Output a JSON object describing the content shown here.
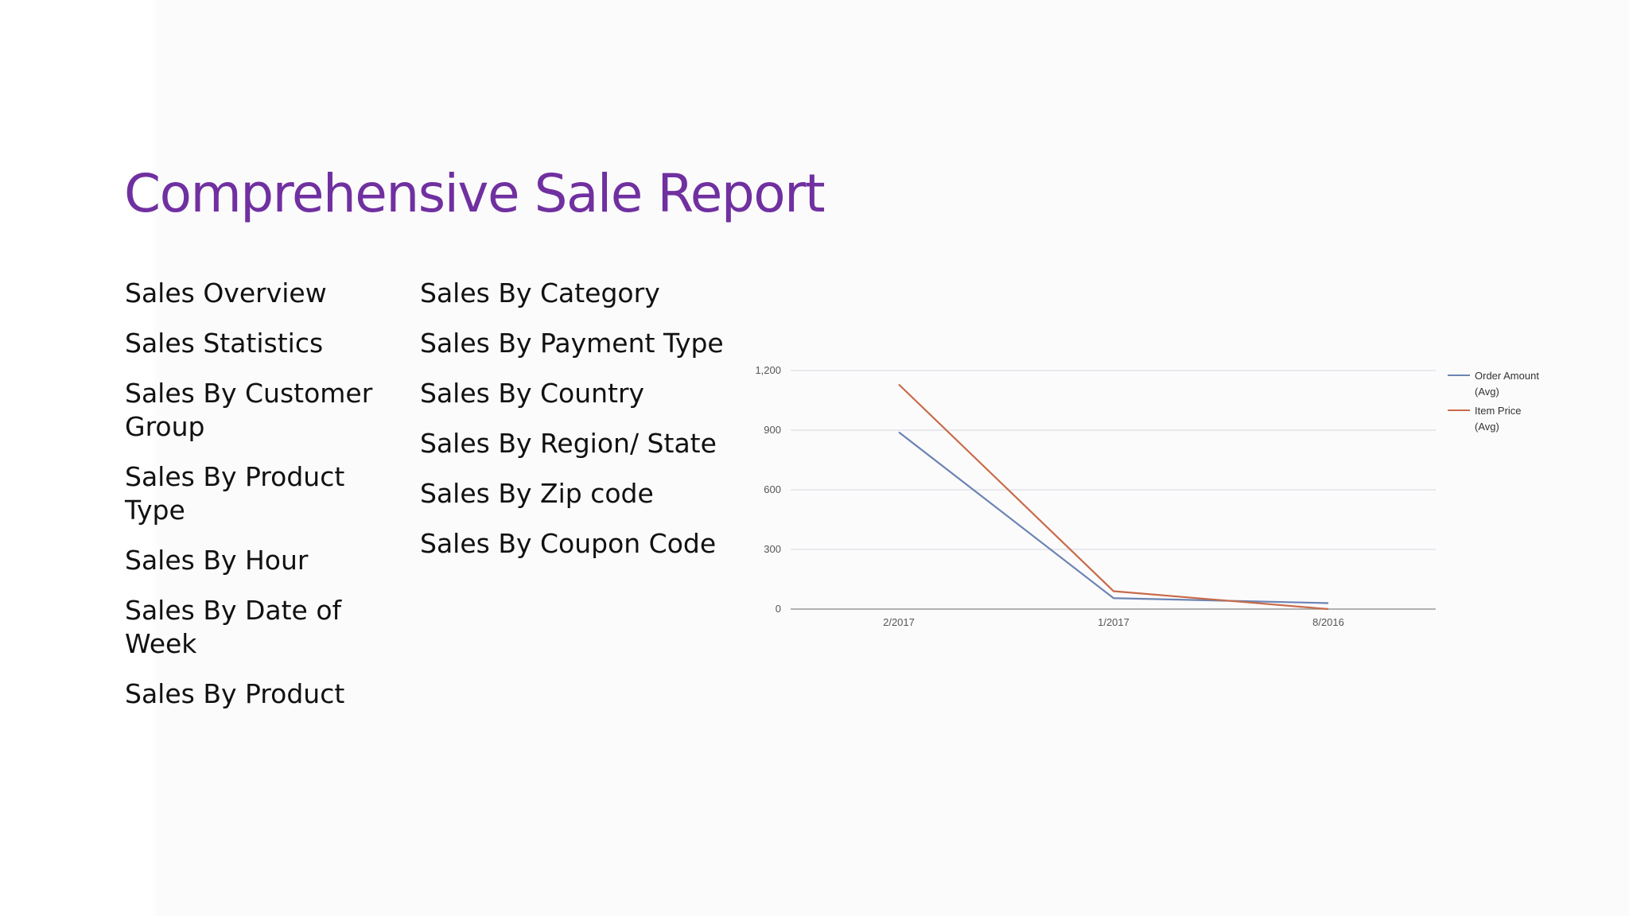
{
  "title": "Comprehensive Sale Report",
  "left_column": [
    "Sales Overview",
    "Sales Statistics",
    "Sales By Customer Group",
    "Sales By Product Type",
    "Sales By Hour",
    "Sales By Date of Week",
    "Sales By Product"
  ],
  "right_column": [
    "Sales By Category",
    "Sales By Payment Type",
    "Sales By Country",
    "Sales By Region/ State",
    "Sales By Zip code",
    "Sales By Coupon Code"
  ],
  "chart_data": {
    "type": "line",
    "categories": [
      "2/2017",
      "1/2017",
      "8/2016"
    ],
    "series": [
      {
        "name": "Order Amount (Avg)",
        "values": [
          890,
          55,
          30
        ],
        "color": "#6b84b3"
      },
      {
        "name": "Item Price (Avg)",
        "values": [
          1130,
          90,
          0
        ],
        "color": "#c86b4a"
      }
    ],
    "ylim": [
      0,
      1200
    ],
    "yticks": [
      0,
      300,
      600,
      900,
      1200
    ],
    "ytick_labels": [
      "0",
      "300",
      "600",
      "900",
      "1,200"
    ],
    "grid": true,
    "legend": "right"
  }
}
